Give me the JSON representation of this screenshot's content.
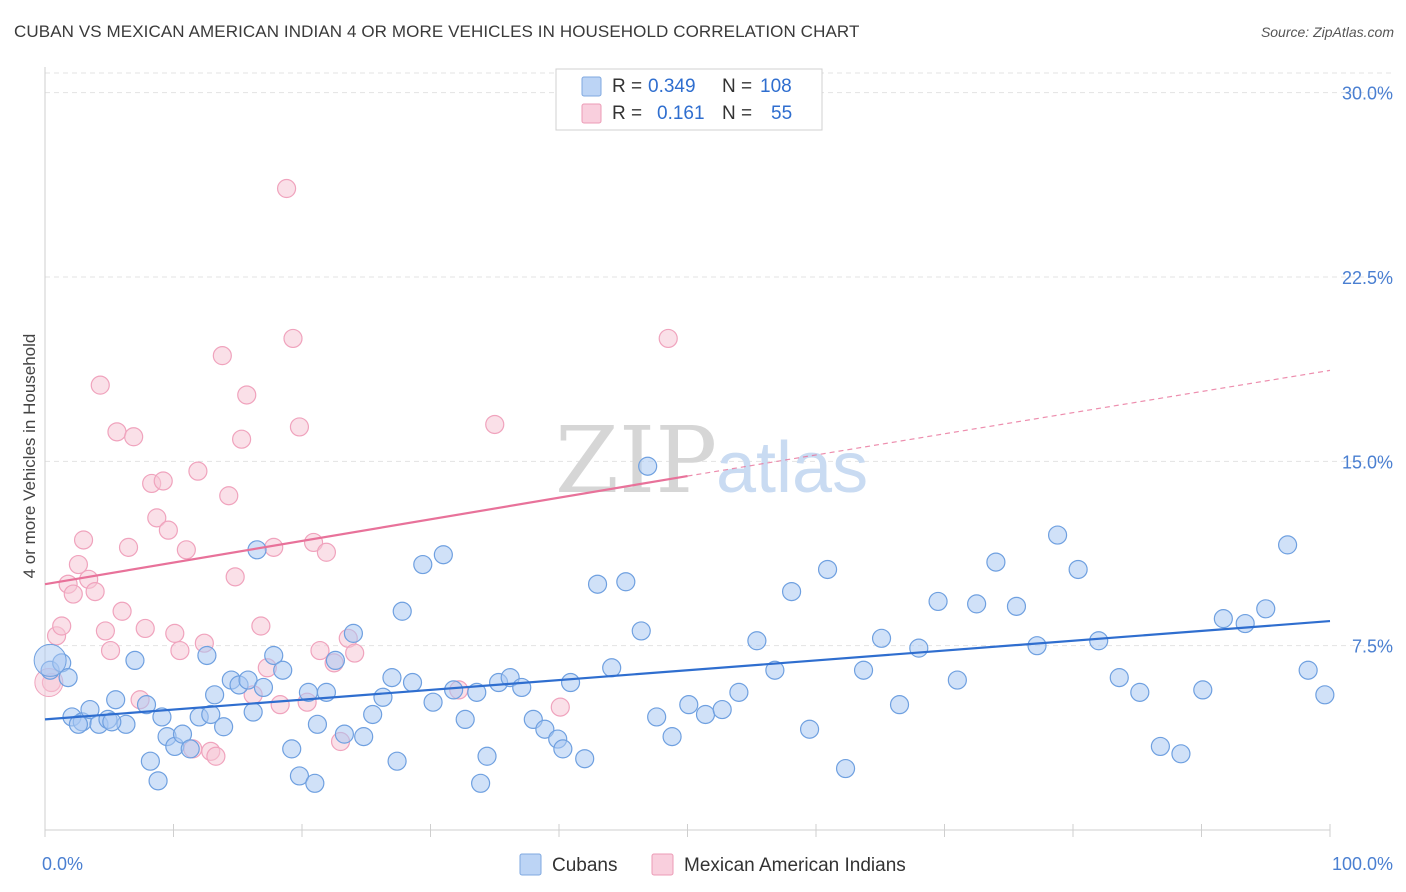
{
  "title": "CUBAN VS MEXICAN AMERICAN INDIAN 4 OR MORE VEHICLES IN HOUSEHOLD CORRELATION CHART",
  "source": "Source: ZipAtlas.com",
  "watermark": {
    "zip": "ZIP",
    "atlas": "atlas"
  },
  "legend_top": {
    "rows": [
      {
        "r_label": "R =",
        "r_value": "0.349",
        "n_label": "N =",
        "n_value": "108",
        "color": "#8ab4ea"
      },
      {
        "r_label": "R =",
        "r_value": "0.161",
        "n_label": "N =",
        "n_value": "55",
        "color": "#f2a7bf"
      }
    ]
  },
  "chart_data": {
    "type": "scatter",
    "title": "CUBAN VS MEXICAN AMERICAN INDIAN 4 OR MORE VEHICLES IN HOUSEHOLD CORRELATION CHART",
    "xlabel": "",
    "ylabel": "4 or more Vehicles in Household",
    "xlim": [
      0,
      100
    ],
    "ylim": [
      0,
      30.8
    ],
    "x_tick_labels": [
      "0.0%",
      "100.0%"
    ],
    "y_ticks": [
      7.5,
      15.0,
      22.5,
      30.0
    ],
    "y_tick_labels": [
      "7.5%",
      "15.0%",
      "22.5%",
      "30.0%"
    ],
    "grid": true,
    "legend_position": "bottom-center",
    "colors": {
      "cubans": "#6fa0e0",
      "cubans_fill": "#a9c8f2",
      "mexican": "#f0a3bd",
      "mexican_fill": "#f6c6d6",
      "cubans_line": "#2f6ecf",
      "mexican_line": "#e8729a",
      "axis_text": "#4a7fd1"
    },
    "series": [
      {
        "name": "Cubans",
        "x": [
          0.4,
          1.3,
          1.8,
          2.1,
          2.9,
          3.5,
          4.2,
          4.9,
          5.5,
          6.3,
          7.0,
          7.9,
          8.2,
          8.8,
          9.5,
          10.1,
          10.7,
          11.3,
          12.0,
          12.6,
          13.2,
          13.9,
          14.5,
          15.1,
          15.8,
          16.5,
          17.0,
          17.8,
          18.5,
          19.2,
          19.8,
          20.5,
          21.2,
          21.9,
          22.6,
          23.3,
          24.0,
          24.8,
          25.5,
          26.3,
          27.0,
          27.8,
          28.6,
          29.4,
          30.2,
          31.0,
          31.8,
          32.7,
          33.6,
          34.4,
          35.3,
          36.2,
          37.1,
          38.0,
          38.9,
          39.9,
          40.9,
          42.0,
          43.0,
          44.1,
          45.2,
          46.4,
          47.6,
          48.8,
          50.1,
          51.4,
          52.7,
          54.0,
          55.4,
          56.8,
          58.1,
          59.5,
          60.9,
          62.3,
          63.7,
          65.1,
          66.5,
          68.0,
          69.5,
          71.0,
          72.5,
          74.0,
          75.6,
          77.2,
          78.8,
          80.4,
          82.0,
          83.6,
          85.2,
          86.8,
          88.4,
          90.1,
          91.7,
          93.4,
          95.0,
          96.7,
          98.3,
          99.6,
          2.6,
          5.2,
          9.1,
          12.9,
          16.2,
          21.0,
          27.4,
          33.9,
          40.3,
          46.9
        ],
        "y": [
          6.5,
          6.8,
          6.2,
          4.6,
          4.4,
          4.9,
          4.3,
          4.5,
          5.3,
          4.3,
          6.9,
          5.1,
          2.8,
          2.0,
          3.8,
          3.4,
          3.9,
          3.3,
          4.6,
          7.1,
          5.5,
          4.2,
          6.1,
          5.9,
          6.1,
          11.4,
          5.8,
          7.1,
          6.5,
          3.3,
          2.2,
          5.6,
          4.3,
          5.6,
          6.9,
          3.9,
          8.0,
          3.8,
          4.7,
          5.4,
          6.2,
          8.9,
          6.0,
          10.8,
          5.2,
          11.2,
          5.7,
          4.5,
          5.6,
          3.0,
          6.0,
          6.2,
          5.8,
          4.5,
          4.1,
          3.7,
          6.0,
          2.9,
          10.0,
          6.6,
          10.1,
          8.1,
          4.6,
          3.8,
          5.1,
          4.7,
          4.9,
          5.6,
          7.7,
          6.5,
          9.7,
          4.1,
          10.6,
          2.5,
          6.5,
          7.8,
          5.1,
          7.4,
          9.3,
          6.1,
          9.2,
          10.9,
          9.1,
          7.5,
          12.0,
          10.6,
          7.7,
          6.2,
          5.6,
          3.4,
          3.1,
          5.7,
          8.6,
          8.4,
          9.0,
          11.6,
          6.5,
          5.5,
          4.3,
          4.4,
          4.6,
          4.7,
          4.8,
          1.9,
          2.8,
          1.9,
          3.3,
          14.8
        ]
      },
      {
        "name": "Mexican American Indians",
        "x": [
          0.5,
          0.9,
          1.3,
          1.8,
          2.2,
          2.6,
          3.0,
          3.4,
          3.9,
          4.3,
          4.7,
          5.1,
          5.6,
          6.0,
          6.5,
          6.9,
          7.4,
          7.8,
          8.3,
          8.7,
          9.2,
          9.6,
          10.1,
          10.5,
          11.0,
          11.5,
          11.9,
          12.4,
          12.9,
          13.3,
          13.8,
          14.3,
          14.8,
          15.3,
          15.7,
          16.2,
          16.8,
          17.3,
          17.8,
          18.3,
          18.8,
          19.3,
          19.8,
          20.4,
          20.9,
          21.4,
          21.9,
          22.5,
          23.0,
          23.6,
          24.1,
          32.2,
          35.0,
          40.1,
          48.5
        ],
        "y": [
          6.0,
          7.9,
          8.3,
          10.0,
          9.6,
          10.8,
          11.8,
          10.2,
          9.7,
          18.1,
          8.1,
          7.3,
          16.2,
          8.9,
          11.5,
          16.0,
          5.3,
          8.2,
          14.1,
          12.7,
          14.2,
          12.2,
          8.0,
          7.3,
          11.4,
          3.3,
          14.6,
          7.6,
          3.2,
          3.0,
          19.3,
          13.6,
          10.3,
          15.9,
          17.7,
          5.5,
          8.3,
          6.6,
          11.5,
          5.1,
          26.1,
          20.0,
          16.4,
          5.2,
          11.7,
          7.3,
          11.3,
          6.8,
          3.6,
          7.8,
          7.2,
          5.7,
          16.5,
          5.0,
          20.0
        ],
        "note_weight": "last three points approx"
      }
    ],
    "trendlines": [
      {
        "series": "Cubans",
        "x": [
          0,
          100
        ],
        "y": [
          4.5,
          8.5
        ],
        "style": "solid"
      },
      {
        "series": "Mexican American Indians",
        "x": [
          0,
          50
        ],
        "y": [
          10.0,
          14.4
        ],
        "style": "solid"
      },
      {
        "series": "Mexican American Indians",
        "x": [
          50,
          100
        ],
        "y": [
          14.4,
          18.7
        ],
        "style": "dashed"
      }
    ]
  },
  "legend_bottom": {
    "items": [
      {
        "label": "Cubans",
        "color": "#a9c8f2"
      },
      {
        "label": "Mexican American Indians",
        "color": "#f6c6d6"
      }
    ]
  }
}
